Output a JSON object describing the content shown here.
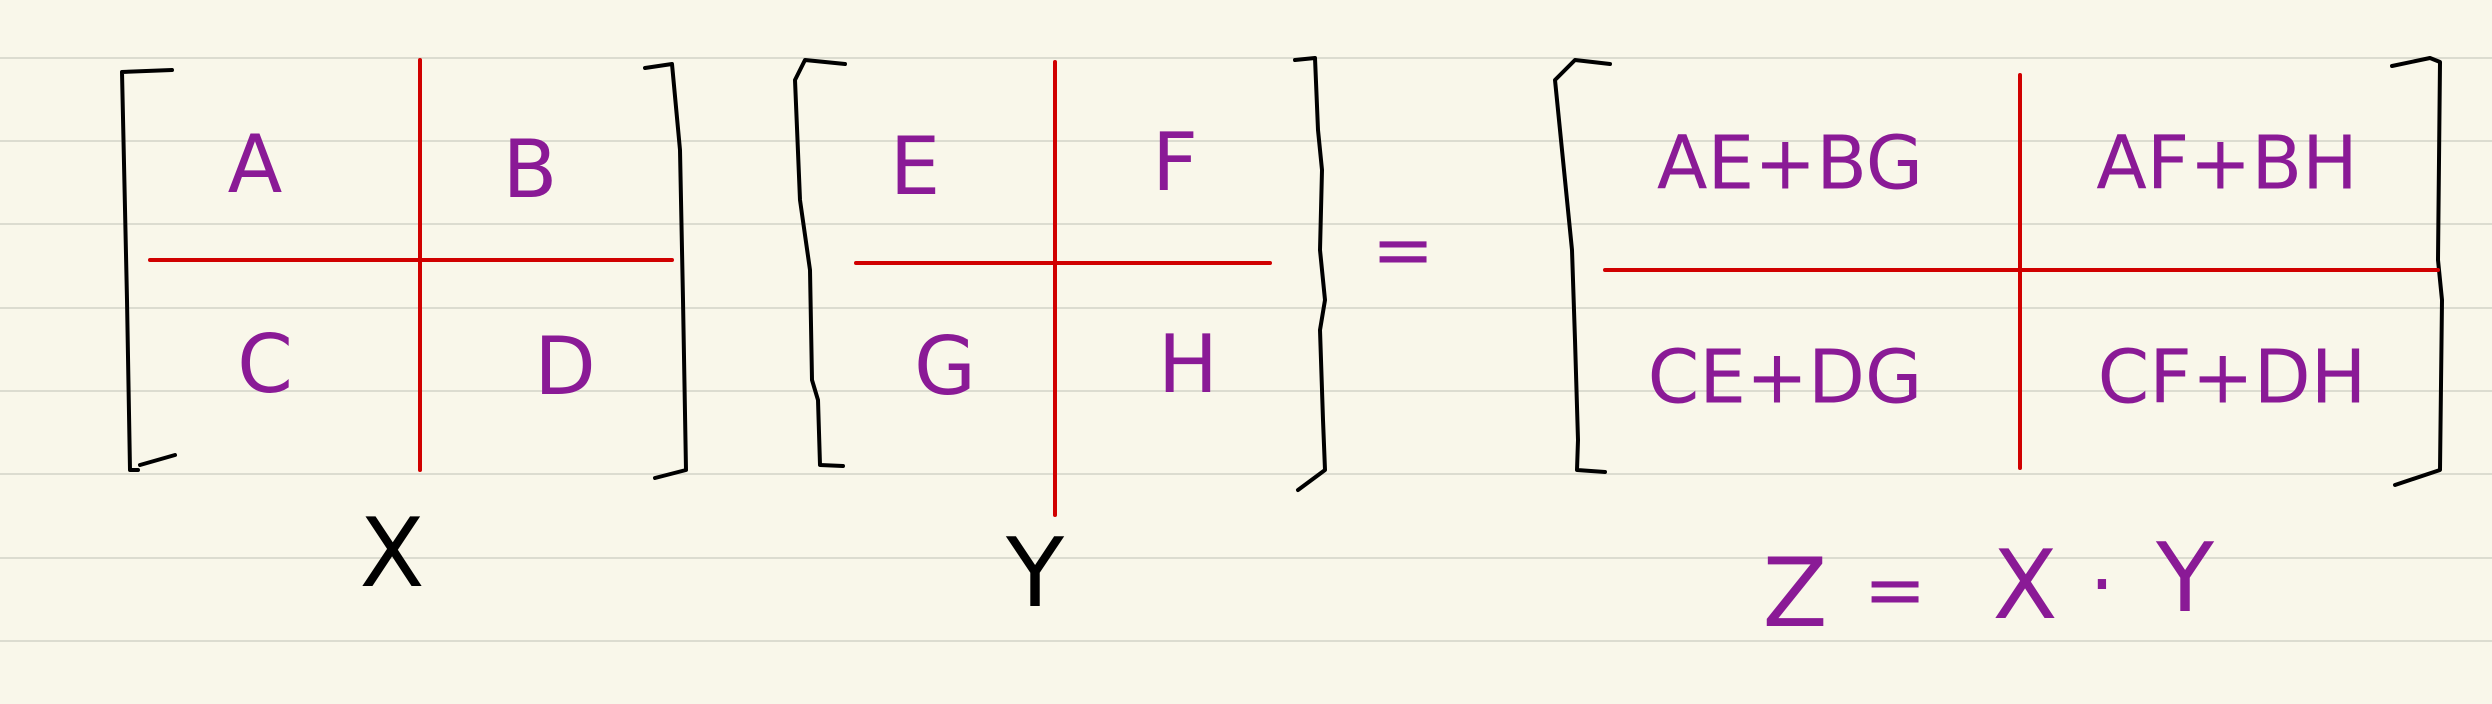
{
  "colors": {
    "paper": "#f9f7ea",
    "ruled_line": "#dcdcd0",
    "ink_black": "#000000",
    "ink_purple": "#8a1a96",
    "divider_red": "#d00000"
  },
  "matrix_x": {
    "label": "X",
    "cells": [
      "A",
      "B",
      "C",
      "D"
    ]
  },
  "matrix_y": {
    "label": "Y",
    "cells": [
      "E",
      "F",
      "G",
      "H"
    ]
  },
  "equals_sign": "=",
  "matrix_z": {
    "cells": [
      "AE+BG",
      "AF+BH",
      "CE+DG",
      "CF+DH"
    ]
  },
  "equation": {
    "lhs": "Z",
    "equals": "=",
    "rhs_left": "X",
    "dot": "·",
    "rhs_right": "Y"
  }
}
